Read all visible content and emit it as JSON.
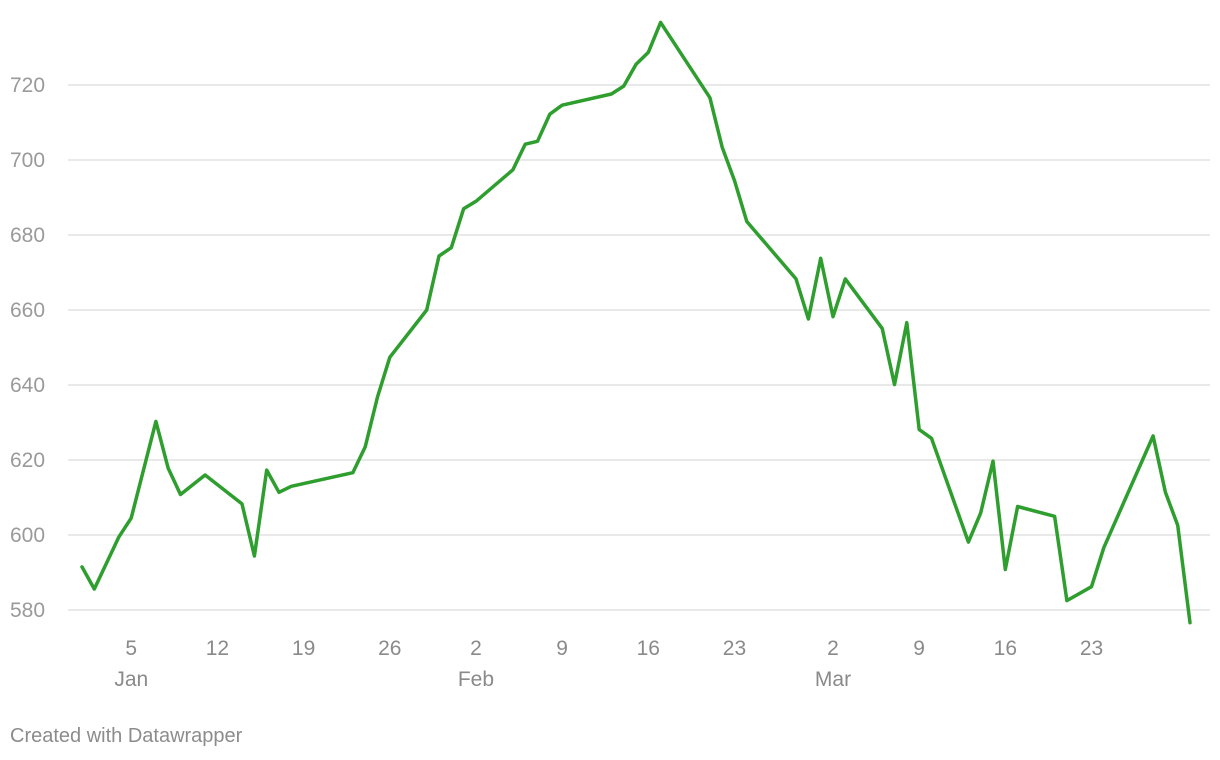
{
  "chart_data": {
    "type": "line",
    "title": "",
    "xlabel": "",
    "ylabel": "",
    "ylim": [
      573,
      737
    ],
    "yticks": [
      580,
      600,
      620,
      640,
      660,
      680,
      700,
      720
    ],
    "grid": true,
    "line_color": "#2e9e2e",
    "x_tick_labels": [
      {
        "date": "2020-01-05",
        "day": "5",
        "month": "Jan"
      },
      {
        "date": "2020-01-12",
        "day": "12",
        "month": ""
      },
      {
        "date": "2020-01-19",
        "day": "19",
        "month": ""
      },
      {
        "date": "2020-01-26",
        "day": "26",
        "month": ""
      },
      {
        "date": "2020-02-02",
        "day": "2",
        "month": "Feb"
      },
      {
        "date": "2020-02-09",
        "day": "9",
        "month": ""
      },
      {
        "date": "2020-02-16",
        "day": "16",
        "month": ""
      },
      {
        "date": "2020-02-23",
        "day": "23",
        "month": ""
      },
      {
        "date": "2020-03-02",
        "day": "2",
        "month": "Mar"
      },
      {
        "date": "2020-03-09",
        "day": "9",
        "month": ""
      },
      {
        "date": "2020-03-16",
        "day": "16",
        "month": ""
      },
      {
        "date": "2020-03-23",
        "day": "23",
        "month": ""
      }
    ],
    "xlim": [
      "2020-01-01",
      "2020-03-29"
    ],
    "series": [
      {
        "name": "",
        "points": [
          [
            "2020-01-01",
            591.5
          ],
          [
            "2020-01-02",
            585.6
          ],
          [
            "2020-01-04",
            599.5
          ],
          [
            "2020-01-05",
            604.5
          ],
          [
            "2020-01-07",
            630.3
          ],
          [
            "2020-01-08",
            617.8
          ],
          [
            "2020-01-09",
            610.8
          ],
          [
            "2020-01-11",
            616.0
          ],
          [
            "2020-01-14",
            608.3
          ],
          [
            "2020-01-15",
            594.4
          ],
          [
            "2020-01-16",
            617.3
          ],
          [
            "2020-01-17",
            611.4
          ],
          [
            "2020-01-18",
            613.0
          ],
          [
            "2020-01-23",
            616.6
          ],
          [
            "2020-01-24",
            623.5
          ],
          [
            "2020-01-25",
            636.8
          ],
          [
            "2020-01-26",
            647.4
          ],
          [
            "2020-01-29",
            660.0
          ],
          [
            "2020-01-30",
            674.4
          ],
          [
            "2020-01-31",
            676.6
          ],
          [
            "2020-02-01",
            687.0
          ],
          [
            "2020-02-02",
            689.0
          ],
          [
            "2020-02-05",
            697.4
          ],
          [
            "2020-02-06",
            704.2
          ],
          [
            "2020-02-07",
            705.0
          ],
          [
            "2020-02-08",
            712.2
          ],
          [
            "2020-02-09",
            714.6
          ],
          [
            "2020-02-13",
            717.6
          ],
          [
            "2020-02-14",
            719.7
          ],
          [
            "2020-02-15",
            725.5
          ],
          [
            "2020-02-16",
            728.7
          ],
          [
            "2020-02-17",
            736.7
          ],
          [
            "2020-02-21",
            716.6
          ],
          [
            "2020-02-22",
            703.4
          ],
          [
            "2020-02-23",
            694.5
          ],
          [
            "2020-02-24",
            683.6
          ],
          [
            "2020-02-28",
            668.3
          ],
          [
            "2020-02-29",
            657.6
          ],
          [
            "2020-03-01",
            673.8
          ],
          [
            "2020-03-02",
            658.2
          ],
          [
            "2020-03-03",
            668.3
          ],
          [
            "2020-03-06",
            655.1
          ],
          [
            "2020-03-07",
            640.1
          ],
          [
            "2020-03-08",
            656.6
          ],
          [
            "2020-03-09",
            628.1
          ],
          [
            "2020-03-10",
            625.8
          ],
          [
            "2020-03-13",
            598.1
          ],
          [
            "2020-03-14",
            605.9
          ],
          [
            "2020-03-15",
            619.7
          ],
          [
            "2020-03-16",
            590.8
          ],
          [
            "2020-03-17",
            607.6
          ],
          [
            "2020-03-20",
            605.0
          ],
          [
            "2020-03-21",
            582.5
          ],
          [
            "2020-03-23",
            586.2
          ],
          [
            "2020-03-24",
            596.6
          ],
          [
            "2020-03-28",
            626.4
          ],
          [
            "2020-03-29",
            611.4
          ],
          [
            "2020-03-30",
            602.6
          ],
          [
            "2020-03-31",
            576.6
          ]
        ]
      }
    ]
  },
  "footer": {
    "credit": "Created with Datawrapper"
  }
}
